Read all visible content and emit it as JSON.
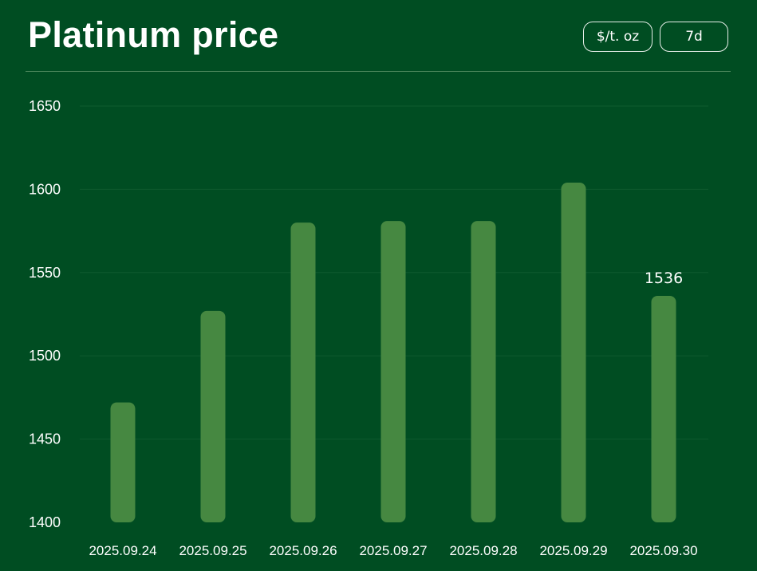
{
  "header": {
    "title": "Platinum price",
    "unit_label": "$/t. oz",
    "range_label": "7d"
  },
  "colors": {
    "background": "#004d22",
    "bar": "#468841",
    "text": "#ffffff"
  },
  "chart_data": {
    "type": "bar",
    "title": "Platinum price",
    "xlabel": "",
    "ylabel": "",
    "categories": [
      "2025.09.24",
      "2025.09.25",
      "2025.09.26",
      "2025.09.27",
      "2025.09.28",
      "2025.09.29",
      "2025.09.30"
    ],
    "values": [
      1472,
      1527,
      1580,
      1581,
      1581,
      1604,
      1536
    ],
    "ylim": [
      1400,
      1650
    ],
    "yticks": [
      1400,
      1450,
      1500,
      1550,
      1600,
      1650
    ],
    "grid": true,
    "legend": "none",
    "annotations": [
      {
        "category": "2025.09.30",
        "text": "1536"
      }
    ]
  }
}
